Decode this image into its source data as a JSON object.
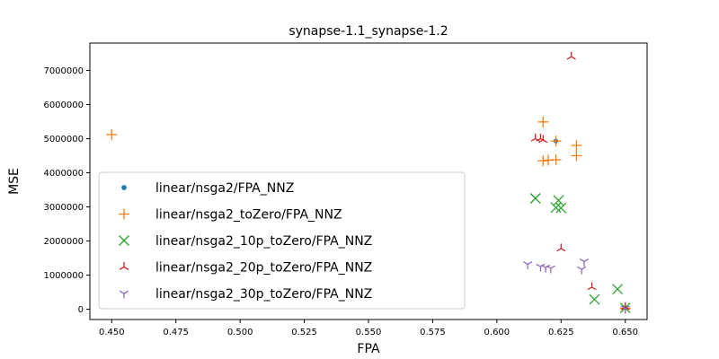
{
  "chart_data": {
    "type": "scatter",
    "title": "synapse-1.1_synapse-1.2",
    "xlabel": "FPA",
    "ylabel": "MSE",
    "xlim": [
      0.4415,
      0.6585
    ],
    "ylim": [
      -300000,
      7800000
    ],
    "xticks": [
      0.45,
      0.475,
      0.5,
      0.525,
      0.55,
      0.575,
      0.6,
      0.625,
      0.65
    ],
    "xtick_labels": [
      "0.450",
      "0.475",
      "0.500",
      "0.525",
      "0.550",
      "0.575",
      "0.600",
      "0.625",
      "0.650"
    ],
    "yticks": [
      0,
      1000000,
      2000000,
      3000000,
      4000000,
      5000000,
      6000000,
      7000000
    ],
    "ytick_labels": [
      "0",
      "1000000",
      "2000000",
      "3000000",
      "4000000",
      "5000000",
      "6000000",
      "7000000"
    ],
    "grid": false,
    "legend_position": "lower-left",
    "series": [
      {
        "name": "linear/nsga2/FPA_NNZ",
        "marker": "point",
        "color": "#1f77b4",
        "points": [
          [
            0.623,
            4930000
          ],
          [
            0.65,
            50000
          ]
        ]
      },
      {
        "name": "linear/nsga2_toZero/FPA_NNZ",
        "marker": "plus",
        "color": "#ff7f0e",
        "points": [
          [
            0.45,
            5120000
          ],
          [
            0.618,
            5490000
          ],
          [
            0.623,
            4930000
          ],
          [
            0.631,
            4800000
          ],
          [
            0.631,
            4500000
          ],
          [
            0.618,
            4350000
          ],
          [
            0.62,
            4370000
          ],
          [
            0.623,
            4380000
          ],
          [
            0.65,
            30000
          ]
        ]
      },
      {
        "name": "linear/nsga2_10p_toZero/FPA_NNZ",
        "marker": "x",
        "color": "#2ca02c",
        "points": [
          [
            0.615,
            3250000
          ],
          [
            0.624,
            3190000
          ],
          [
            0.623,
            2980000
          ],
          [
            0.625,
            2970000
          ],
          [
            0.638,
            290000
          ],
          [
            0.647,
            590000
          ],
          [
            0.65,
            40000
          ]
        ]
      },
      {
        "name": "linear/nsga2_20p_toZero/FPA_NNZ",
        "marker": "tri-down",
        "color": "#d62728",
        "points": [
          [
            0.629,
            7400000
          ],
          [
            0.615,
            5000000
          ],
          [
            0.617,
            5000000
          ],
          [
            0.618,
            4960000
          ],
          [
            0.625,
            1780000
          ],
          [
            0.637,
            650000
          ],
          [
            0.65,
            60000
          ]
        ]
      },
      {
        "name": "linear/nsga2_30p_toZero/FPA_NNZ",
        "marker": "tri-up",
        "color": "#9467bd",
        "points": [
          [
            0.612,
            1320000
          ],
          [
            0.617,
            1250000
          ],
          [
            0.619,
            1220000
          ],
          [
            0.621,
            1200000
          ],
          [
            0.633,
            1170000
          ],
          [
            0.634,
            1400000
          ],
          [
            0.65,
            20000
          ]
        ]
      }
    ]
  }
}
